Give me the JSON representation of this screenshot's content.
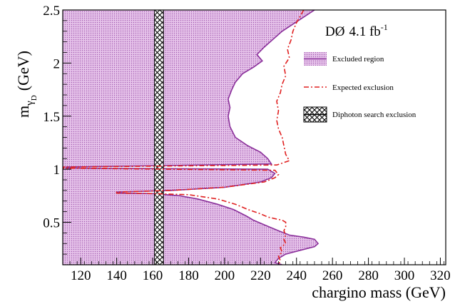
{
  "chart_data": {
    "type": "area",
    "xlabel": "chargino mass (GeV)",
    "ylabel_main": "m",
    "ylabel_sub1": "γ",
    "ylabel_sub2": "D",
    "ylabel_unit": "(GeV)",
    "experiment": {
      "name": "DØ",
      "lumi": "4.1 fb",
      "lumi_exp": "-1"
    },
    "xlim": [
      110,
      323
    ],
    "ylim": [
      0.1,
      2.5
    ],
    "x_ticks": [
      {
        "value": 120,
        "label": "120"
      },
      {
        "value": 140,
        "label": "140"
      },
      {
        "value": 160,
        "label": "160"
      },
      {
        "value": 180,
        "label": "180"
      },
      {
        "value": 200,
        "label": "200"
      },
      {
        "value": 220,
        "label": "220"
      },
      {
        "value": 240,
        "label": "240"
      },
      {
        "value": 260,
        "label": "260"
      },
      {
        "value": 280,
        "label": "280"
      },
      {
        "value": 300,
        "label": "300"
      },
      {
        "value": 320,
        "label": "320"
      }
    ],
    "y_ticks": [
      {
        "value": 0.5,
        "label": "0.5"
      },
      {
        "value": 1.0,
        "label": "1"
      },
      {
        "value": 1.5,
        "label": "1.5"
      },
      {
        "value": 2.0,
        "label": "2"
      },
      {
        "value": 2.5,
        "label": "2.5"
      }
    ],
    "legend": [
      {
        "key": "excluded",
        "label": "Excluded region"
      },
      {
        "key": "expected",
        "label": "Expected exclusion"
      },
      {
        "key": "diphoton",
        "label": "Diphoton search exclusion"
      }
    ],
    "colors": {
      "excluded_fill": "#d9a6e0",
      "excluded_line": "#8a2f9a",
      "expected_line": "#e02020",
      "diphoton": "#222222"
    },
    "excluded_boundary": [
      {
        "x": 250,
        "y": 2.5
      },
      {
        "x": 232,
        "y": 2.3
      },
      {
        "x": 222,
        "y": 2.15
      },
      {
        "x": 218,
        "y": 2.08
      },
      {
        "x": 221,
        "y": 2.02
      },
      {
        "x": 216,
        "y": 1.96
      },
      {
        "x": 210,
        "y": 1.9
      },
      {
        "x": 206,
        "y": 1.82
      },
      {
        "x": 204,
        "y": 1.75
      },
      {
        "x": 202,
        "y": 1.66
      },
      {
        "x": 203,
        "y": 1.58
      },
      {
        "x": 202,
        "y": 1.5
      },
      {
        "x": 203,
        "y": 1.4
      },
      {
        "x": 206,
        "y": 1.3
      },
      {
        "x": 213,
        "y": 1.22
      },
      {
        "x": 220,
        "y": 1.16
      },
      {
        "x": 224,
        "y": 1.1
      },
      {
        "x": 226,
        "y": 1.05
      },
      {
        "x": 112,
        "y": 1.02
      },
      {
        "x": 112,
        "y": 1.01
      },
      {
        "x": 224,
        "y": 1.0
      },
      {
        "x": 228,
        "y": 0.96
      },
      {
        "x": 226,
        "y": 0.92
      },
      {
        "x": 220,
        "y": 0.88
      },
      {
        "x": 200,
        "y": 0.83
      },
      {
        "x": 170,
        "y": 0.8
      },
      {
        "x": 140,
        "y": 0.785
      },
      {
        "x": 140,
        "y": 0.775
      },
      {
        "x": 160,
        "y": 0.77
      },
      {
        "x": 175,
        "y": 0.75
      },
      {
        "x": 185,
        "y": 0.72
      },
      {
        "x": 196,
        "y": 0.67
      },
      {
        "x": 205,
        "y": 0.62
      },
      {
        "x": 212,
        "y": 0.56
      },
      {
        "x": 216,
        "y": 0.52
      },
      {
        "x": 223,
        "y": 0.47
      },
      {
        "x": 230,
        "y": 0.42
      },
      {
        "x": 236,
        "y": 0.38
      },
      {
        "x": 244,
        "y": 0.36
      },
      {
        "x": 250,
        "y": 0.34
      },
      {
        "x": 252,
        "y": 0.3
      },
      {
        "x": 250,
        "y": 0.27
      },
      {
        "x": 243,
        "y": 0.24
      },
      {
        "x": 234,
        "y": 0.2
      },
      {
        "x": 230,
        "y": 0.16
      },
      {
        "x": 228,
        "y": 0.12
      },
      {
        "x": 232,
        "y": 0.1
      }
    ],
    "expected_curve": [
      {
        "x": 244,
        "y": 2.5
      },
      {
        "x": 240,
        "y": 2.38
      },
      {
        "x": 238,
        "y": 2.3
      },
      {
        "x": 237,
        "y": 2.22
      },
      {
        "x": 235,
        "y": 2.13
      },
      {
        "x": 236,
        "y": 2.05
      },
      {
        "x": 233,
        "y": 1.97
      },
      {
        "x": 234,
        "y": 1.88
      },
      {
        "x": 232,
        "y": 1.8
      },
      {
        "x": 231,
        "y": 1.72
      },
      {
        "x": 229,
        "y": 1.64
      },
      {
        "x": 230,
        "y": 1.55
      },
      {
        "x": 229,
        "y": 1.46
      },
      {
        "x": 230,
        "y": 1.38
      },
      {
        "x": 232,
        "y": 1.3
      },
      {
        "x": 233,
        "y": 1.22
      },
      {
        "x": 234,
        "y": 1.14
      },
      {
        "x": 236,
        "y": 1.08
      },
      {
        "x": 229,
        "y": 1.04
      },
      {
        "x": 110,
        "y": 1.02
      },
      {
        "x": 110,
        "y": 1.01
      },
      {
        "x": 228,
        "y": 0.99
      },
      {
        "x": 230,
        "y": 0.95
      },
      {
        "x": 228,
        "y": 0.92
      },
      {
        "x": 222,
        "y": 0.88
      },
      {
        "x": 200,
        "y": 0.83
      },
      {
        "x": 170,
        "y": 0.8
      },
      {
        "x": 140,
        "y": 0.785
      },
      {
        "x": 140,
        "y": 0.775
      },
      {
        "x": 160,
        "y": 0.77
      },
      {
        "x": 180,
        "y": 0.76
      },
      {
        "x": 196,
        "y": 0.72
      },
      {
        "x": 206,
        "y": 0.67
      },
      {
        "x": 213,
        "y": 0.62
      },
      {
        "x": 220,
        "y": 0.58
      },
      {
        "x": 224,
        "y": 0.55
      },
      {
        "x": 229,
        "y": 0.53
      },
      {
        "x": 232,
        "y": 0.52
      },
      {
        "x": 234,
        "y": 0.5
      },
      {
        "x": 234,
        "y": 0.46
      },
      {
        "x": 233,
        "y": 0.42
      },
      {
        "x": 234,
        "y": 0.38
      },
      {
        "x": 233,
        "y": 0.34
      },
      {
        "x": 234,
        "y": 0.3
      },
      {
        "x": 231,
        "y": 0.26
      },
      {
        "x": 232,
        "y": 0.22
      },
      {
        "x": 230,
        "y": 0.18
      },
      {
        "x": 231,
        "y": 0.14
      },
      {
        "x": 230,
        "y": 0.1
      }
    ],
    "diphoton_band": {
      "x_min": 161,
      "x_max": 166
    }
  }
}
